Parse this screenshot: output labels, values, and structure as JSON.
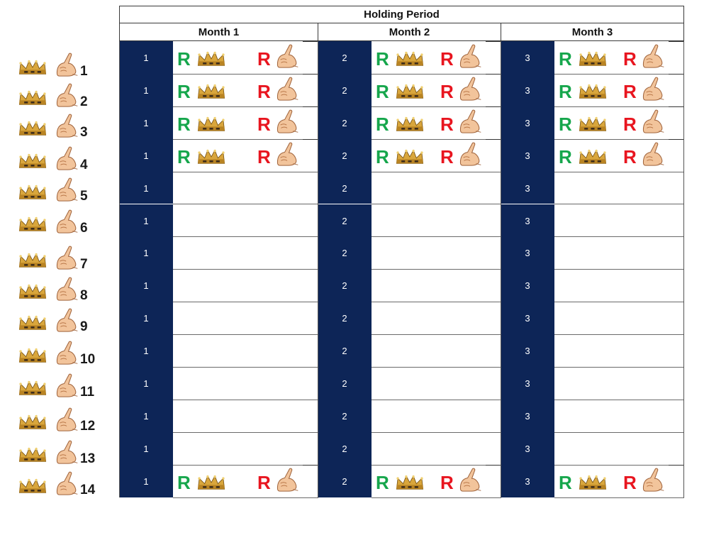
{
  "header": {
    "title": "Holding Period",
    "months": [
      "Month 1",
      "Month 2",
      "Month 3"
    ]
  },
  "month_indices": [
    "1",
    "2",
    "3"
  ],
  "rows": [
    {
      "label": "1",
      "marked": true
    },
    {
      "label": "2",
      "marked": true
    },
    {
      "label": "3",
      "marked": true
    },
    {
      "label": "4",
      "marked": true
    },
    {
      "label": "5",
      "marked": false
    },
    {
      "label": "6",
      "marked": false
    },
    {
      "label": "7",
      "marked": false
    },
    {
      "label": "8",
      "marked": false
    },
    {
      "label": "9",
      "marked": false
    },
    {
      "label": "10",
      "marked": false
    },
    {
      "label": "11",
      "marked": false
    },
    {
      "label": "12",
      "marked": false
    },
    {
      "label": "13",
      "marked": false
    },
    {
      "label": "14",
      "marked": true
    }
  ],
  "marker_letter": "R",
  "colors": {
    "dark_cell": "#0d2557",
    "buy_r": "#16a64c",
    "sell_r": "#e8151f"
  },
  "icons": {
    "row_left": "crown-icon",
    "row_right": "hand-icon"
  }
}
